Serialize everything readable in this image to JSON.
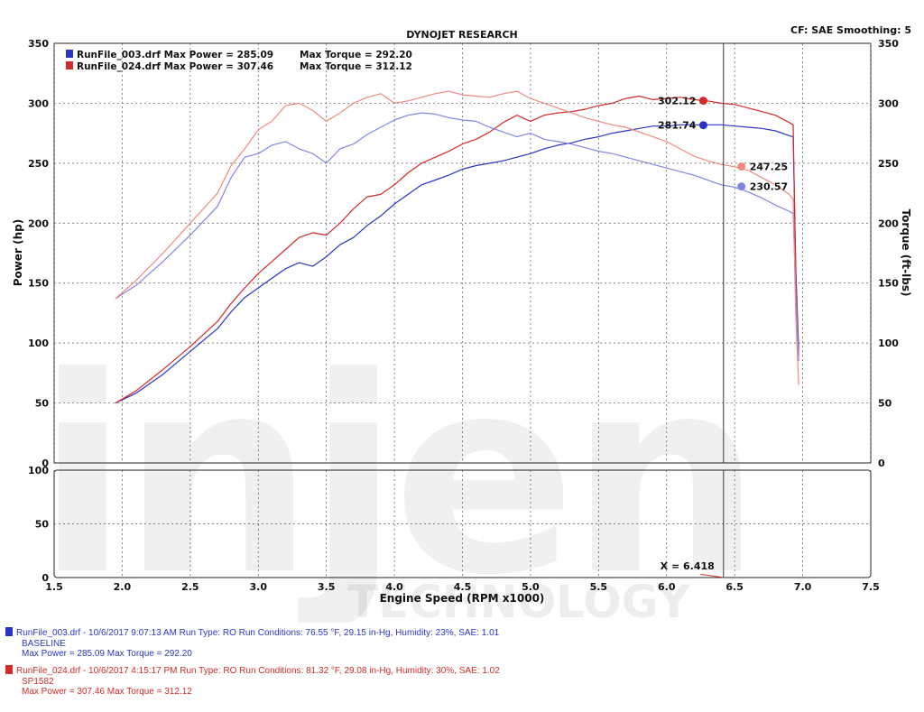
{
  "header": {
    "title": "DYNOJET RESEARCH",
    "settings": "CF: SAE  Smoothing: 5"
  },
  "legend": [
    {
      "label": "RunFile_003.drf Max Power = 285.09",
      "torque": "Max Torque = 292.20",
      "color": "#2a35c8"
    },
    {
      "label": "RunFile_024.drf Max Power = 307.46",
      "torque": "Max Torque = 312.12",
      "color": "#d42a2a"
    }
  ],
  "cursor": {
    "x_label": "X = 6.418",
    "x": 6.418,
    "readouts": [
      {
        "text": "302.12",
        "x": 6.27,
        "y": 302.12,
        "color": "#d42a2a",
        "side": "left"
      },
      {
        "text": "281.74",
        "x": 6.27,
        "y": 281.74,
        "color": "#2a35c8",
        "side": "left"
      },
      {
        "text": "247.25",
        "x": 6.55,
        "y": 247.25,
        "color": "#ee8a80",
        "side": "right"
      },
      {
        "text": "230.57",
        "x": 6.55,
        "y": 230.57,
        "color": "#7f87e6",
        "side": "right"
      }
    ]
  },
  "watermark": {
    "main": "injen",
    "sub": "TECHNOLOGY"
  },
  "footer": [
    {
      "line1": "RunFile_003.drf - 10/6/2017 9:07:13 AM  Run Type: RO  Run Conditions: 76.55 °F, 29.15 in-Hg,  Humidity:  23%,  SAE: 1.01",
      "line2": "BASELINE",
      "line3": "Max Power = 285.09  Max Torque = 292.20",
      "color": "#2a35c8"
    },
    {
      "line1": "RunFile_024.drf - 10/6/2017 4:15:17 PM  Run Type: RO  Run Conditions: 81.32 °F, 29.08 in-Hg,  Humidity:  30%,  SAE: 1.02",
      "line2": "SP1582",
      "line3": "Max Power = 307.46  Max Torque = 312.12",
      "color": "#d42a2a"
    }
  ],
  "chart_data": [
    {
      "type": "line",
      "title": "DYNOJET RESEARCH",
      "xlabel": "Engine Speed (RPM x1000)",
      "ylabel": "Power (hp)",
      "y2label": "Torque (ft-lbs)",
      "xlim": [
        1.5,
        7.5
      ],
      "ylim": [
        0,
        350
      ],
      "y2lim": [
        0,
        350
      ],
      "xticks": [
        "1.5",
        "2.0",
        "2.5",
        "3.0",
        "3.5",
        "4.0",
        "4.5",
        "5.0",
        "5.5",
        "6.0",
        "6.5",
        "7.0",
        "7.5"
      ],
      "yticks": [
        "0",
        "50",
        "100",
        "150",
        "200",
        "250",
        "300",
        "350"
      ],
      "y2ticks": [
        "0",
        "50",
        "100",
        "150",
        "200",
        "250",
        "300",
        "350"
      ],
      "grid": true,
      "legend_position": "top-left",
      "series": [
        {
          "name": "RunFile_003.drf Max Power = 285.09",
          "measure": "power",
          "color": "#2a35c8",
          "x": [
            1.95,
            2.1,
            2.3,
            2.5,
            2.7,
            2.8,
            2.9,
            3.0,
            3.1,
            3.2,
            3.3,
            3.4,
            3.5,
            3.6,
            3.7,
            3.8,
            3.9,
            4.0,
            4.1,
            4.2,
            4.3,
            4.4,
            4.5,
            4.6,
            4.7,
            4.8,
            4.9,
            5.0,
            5.1,
            5.2,
            5.3,
            5.4,
            5.5,
            5.6,
            5.7,
            5.8,
            5.9,
            6.0,
            6.1,
            6.2,
            6.3,
            6.4,
            6.5,
            6.6,
            6.7,
            6.8,
            6.9,
            6.93,
            6.95,
            6.97
          ],
          "y": [
            50,
            58,
            74,
            93,
            112,
            126,
            138,
            146,
            154,
            162,
            167,
            164,
            172,
            182,
            188,
            198,
            206,
            216,
            224,
            232,
            236,
            240,
            245,
            248,
            250,
            252,
            255,
            258,
            262,
            265,
            267,
            270,
            272,
            275,
            277,
            279,
            281,
            281,
            282,
            282,
            282,
            282,
            281,
            280,
            279,
            277,
            273,
            272,
            160,
            95
          ]
        },
        {
          "name": "RunFile_024.drf Max Power = 307.46",
          "measure": "power",
          "color": "#d42a2a",
          "x": [
            1.95,
            2.1,
            2.3,
            2.5,
            2.7,
            2.8,
            2.9,
            3.0,
            3.1,
            3.2,
            3.3,
            3.4,
            3.5,
            3.6,
            3.7,
            3.8,
            3.9,
            4.0,
            4.1,
            4.2,
            4.3,
            4.4,
            4.5,
            4.6,
            4.7,
            4.8,
            4.9,
            5.0,
            5.1,
            5.2,
            5.3,
            5.4,
            5.5,
            5.6,
            5.7,
            5.8,
            5.9,
            6.0,
            6.1,
            6.2,
            6.3,
            6.4,
            6.5,
            6.6,
            6.7,
            6.8,
            6.9,
            6.93,
            6.95,
            6.97
          ],
          "y": [
            50,
            60,
            78,
            97,
            118,
            133,
            146,
            158,
            168,
            178,
            188,
            192,
            190,
            200,
            212,
            222,
            224,
            232,
            242,
            250,
            255,
            260,
            266,
            270,
            276,
            284,
            290,
            285,
            290,
            292,
            293,
            295,
            298,
            300,
            304,
            306,
            303,
            304,
            305,
            303,
            302,
            300,
            299,
            296,
            293,
            290,
            284,
            282,
            150,
            90
          ]
        },
        {
          "name": "RunFile_003.drf Max Torque = 292.20",
          "measure": "torque",
          "color": "#7f87e6",
          "x": [
            1.95,
            2.1,
            2.3,
            2.5,
            2.7,
            2.8,
            2.9,
            3.0,
            3.1,
            3.2,
            3.3,
            3.4,
            3.5,
            3.6,
            3.7,
            3.8,
            3.9,
            4.0,
            4.1,
            4.2,
            4.3,
            4.4,
            4.5,
            4.6,
            4.7,
            4.8,
            4.9,
            5.0,
            5.1,
            5.2,
            5.3,
            5.4,
            5.5,
            5.6,
            5.7,
            5.8,
            5.9,
            6.0,
            6.1,
            6.2,
            6.3,
            6.4,
            6.5,
            6.6,
            6.7,
            6.8,
            6.9,
            6.93,
            6.95,
            6.97
          ],
          "y": [
            137,
            148,
            168,
            190,
            214,
            238,
            255,
            258,
            265,
            268,
            262,
            258,
            250,
            262,
            266,
            274,
            280,
            286,
            290,
            292,
            291,
            288,
            286,
            285,
            280,
            276,
            272,
            275,
            270,
            268,
            266,
            263,
            260,
            258,
            255,
            252,
            249,
            246,
            243,
            240,
            236,
            232,
            230,
            226,
            221,
            215,
            210,
            208,
            140,
            85
          ]
        },
        {
          "name": "RunFile_024.drf Max Torque = 312.12",
          "measure": "torque",
          "color": "#ee8a80",
          "x": [
            1.95,
            2.1,
            2.3,
            2.5,
            2.7,
            2.8,
            2.9,
            3.0,
            3.1,
            3.2,
            3.3,
            3.4,
            3.5,
            3.6,
            3.7,
            3.8,
            3.9,
            4.0,
            4.1,
            4.2,
            4.3,
            4.4,
            4.5,
            4.6,
            4.7,
            4.8,
            4.9,
            5.0,
            5.1,
            5.2,
            5.3,
            5.4,
            5.5,
            5.6,
            5.7,
            5.8,
            5.9,
            6.0,
            6.1,
            6.2,
            6.3,
            6.4,
            6.5,
            6.6,
            6.7,
            6.8,
            6.9,
            6.93,
            6.95,
            6.97
          ],
          "y": [
            137,
            152,
            175,
            200,
            225,
            248,
            262,
            278,
            285,
            298,
            300,
            294,
            285,
            292,
            300,
            305,
            308,
            300,
            302,
            305,
            308,
            310,
            307,
            306,
            305,
            308,
            310,
            304,
            300,
            296,
            292,
            288,
            285,
            282,
            280,
            276,
            272,
            268,
            262,
            256,
            252,
            249,
            247,
            244,
            238,
            232,
            224,
            220,
            120,
            65
          ]
        }
      ]
    },
    {
      "type": "line",
      "xlim": [
        1.5,
        7.5
      ],
      "ylim": [
        0,
        100
      ],
      "yticks": [
        "0",
        "50",
        "100"
      ],
      "grid": true,
      "series": [
        {
          "name": "cursor trace",
          "color": "#d42a2a",
          "x": [
            6.25,
            6.42
          ],
          "y": [
            3,
            0
          ]
        }
      ]
    }
  ]
}
